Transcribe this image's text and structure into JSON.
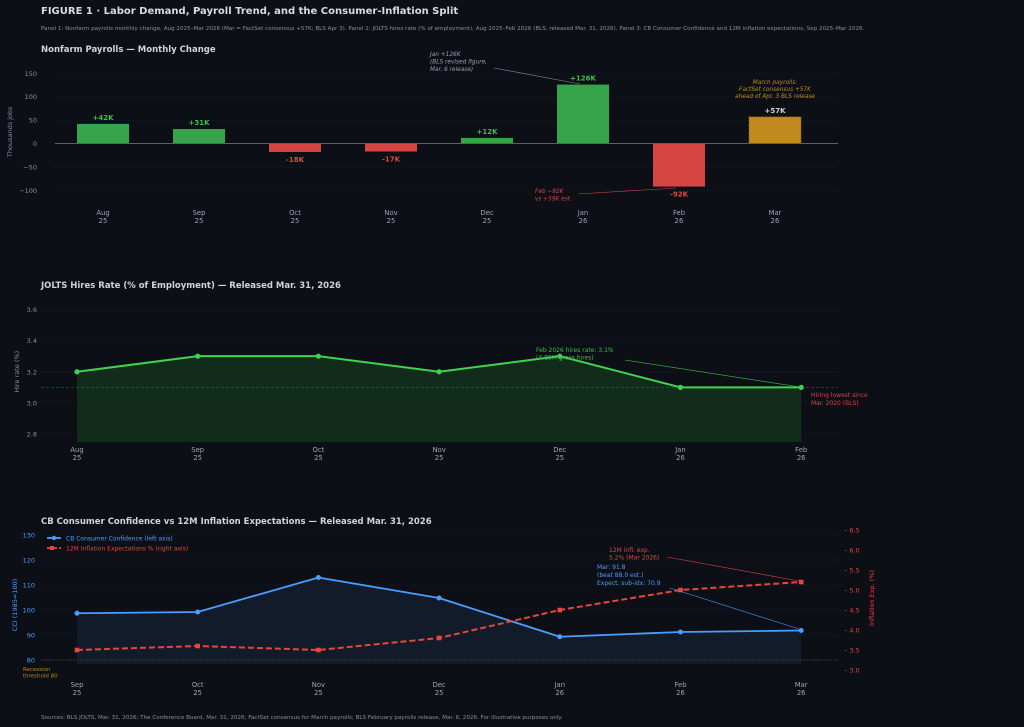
{
  "figure": {
    "title": "FIGURE 1  ·  Labor Demand, Payroll Trend, and the Consumer-Inflation Split",
    "subtitle": "Panel 1: Nonfarm payrolls monthly change, Aug 2025–Mar 2026 (Mar = FactSet consensus +57K; BLS Apr 3).  Panel 2: JOLTS hires rate (% of employment), Aug 2025–Feb 2026 (BLS, released Mar. 31, 2026).  Panel 3: CB Consumer Confidence and 12M inflation expectations, Sep 2025–Mar 2026.",
    "footer": "Sources: BLS JOLTS, Mar. 31, 2026; The Conference Board, Mar. 31, 2026; FactSet consensus for March payrolls; BLS February payrolls release, Mar. 6, 2026.  For illustrative purposes only.",
    "background": "#0c0f16"
  },
  "chart_data": [
    {
      "type": "bar",
      "title": "Nonfarm Payrolls — Monthly Change",
      "ylabel": "Thousands jobs",
      "ylim": [
        -125,
        170
      ],
      "yticks": [
        -100,
        -50,
        0,
        50,
        100,
        150
      ],
      "grid": true,
      "categories": [
        "Aug\n25",
        "Sep\n25",
        "Oct\n25",
        "Nov\n25",
        "Dec\n25",
        "Jan\n26",
        "Feb\n26",
        "Mar\n26"
      ],
      "values": [
        42,
        31,
        -18,
        -17,
        12,
        126,
        -92,
        57
      ],
      "data_labels": [
        "+42K",
        "+31K",
        "-18K",
        "-17K",
        "+12K",
        "+126K",
        "-92K",
        "+57K"
      ],
      "colors": {
        "positive": "#37a34a",
        "negative": "#d64541",
        "consensus": "#c08a1e"
      },
      "annotations": [
        {
          "text": "Jan +126K\n(BLS revised figure,\nMar. 6 release)",
          "color": "#9aa0a8",
          "target": "Jan\n26"
        },
        {
          "text": "Feb −92K\nvs +59K est.",
          "color": "#d64541",
          "target": "Feb\n26"
        },
        {
          "text": "March payrolls:\nFactSet consensus +57K\nahead of Apr. 3 BLS release",
          "color": "#c08a1e",
          "target": "Mar\n26"
        }
      ]
    },
    {
      "type": "area",
      "title": "JOLTS Hires Rate (% of Employment)  —  Released Mar. 31, 2026",
      "ylabel": "Hire rate (%)",
      "ylim": [
        2.75,
        3.66
      ],
      "yticks": [
        2.8,
        3.0,
        3.2,
        3.4,
        3.6
      ],
      "grid": true,
      "categories": [
        "Aug\n25",
        "Sep\n25",
        "Oct\n25",
        "Nov\n25",
        "Dec\n25",
        "Jan\n26",
        "Feb\n26"
      ],
      "values": [
        3.2,
        3.3,
        3.3,
        3.2,
        3.3,
        3.1,
        3.1
      ],
      "reference_line": 3.1,
      "colors": {
        "line": "#3fd34e",
        "fill": "#13301d",
        "reference": "#a04040"
      },
      "annotations": [
        {
          "text": "Feb 2026 hires rate: 3.1%\n(4.85M gross hires)",
          "color": "#3fbf4e",
          "target": "Feb\n26"
        },
        {
          "text": "Hiring lowest since\nMar. 2020 (BLS)",
          "color": "#d64541"
        }
      ]
    },
    {
      "type": "line",
      "title": "CB Consumer Confidence vs 12M Inflation Expectations  —  Released Mar. 31, 2026",
      "ylabel": "CCI (1985=100)",
      "ylabel_right": "Inflation Exp. (%)",
      "ylim": [
        76,
        132.8
      ],
      "ylim_right": [
        3.0,
        6.55
      ],
      "yticks": [
        80,
        90,
        100,
        110,
        120,
        130
      ],
      "yticks_right": [
        3.0,
        3.5,
        4.0,
        4.5,
        5.0,
        5.5,
        6.0,
        6.5
      ],
      "grid": true,
      "legend": "top-left",
      "categories": [
        "Sep\n25",
        "Oct\n25",
        "Nov\n25",
        "Dec\n25",
        "Jan\n26",
        "Feb\n26",
        "Mar\n26"
      ],
      "series": [
        {
          "name": "CB Consumer Confidence (left axis)",
          "axis": "left",
          "color": "#4a9eff",
          "values": [
            98.7,
            99.2,
            113.0,
            104.8,
            89.3,
            91.2,
            91.8
          ]
        },
        {
          "name": "12M Inflation Expectations % (right axis)",
          "axis": "right",
          "color": "#e8453c",
          "values": [
            3.5,
            3.6,
            3.5,
            3.8,
            4.5,
            5.0,
            5.2
          ]
        }
      ],
      "reference_line": 80,
      "reference_label": "Recession\nthreshold 80",
      "annotations": [
        {
          "text": "12M infl. exp.\n5.2% (Mar 2026)",
          "color": "#e8453c",
          "target": "Mar\n26"
        },
        {
          "text": "Mar: 91.8\n(beat 88.0 est.)\nExpect. sub-idx: 70.9",
          "color": "#4a9eff",
          "target": "Mar\n26"
        }
      ]
    }
  ]
}
